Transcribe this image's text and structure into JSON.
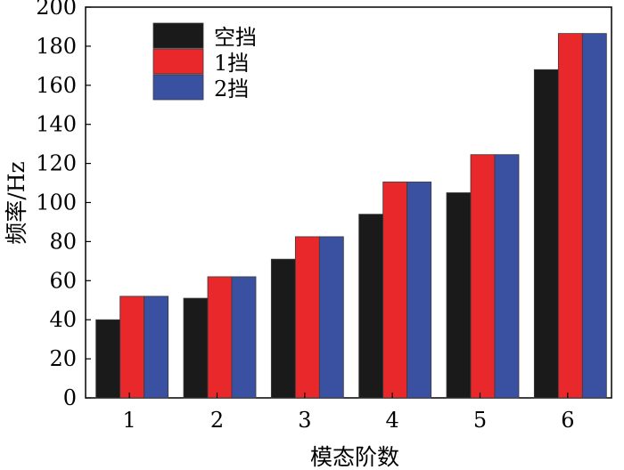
{
  "chart_data": {
    "type": "bar",
    "xlabel": "模态阶数",
    "ylabel": "频率/Hz",
    "categories": [
      "1",
      "2",
      "3",
      "4",
      "5",
      "6"
    ],
    "ylim": [
      0,
      200
    ],
    "yticks": [
      0,
      20,
      40,
      60,
      80,
      100,
      120,
      140,
      160,
      180,
      200
    ],
    "grid": false,
    "legend_position": "top-left",
    "series": [
      {
        "name": "空挡",
        "color": "#1a1a1a",
        "values": [
          40,
          51,
          71,
          94,
          105,
          168
        ]
      },
      {
        "name": "1挡",
        "color": "#e8282a",
        "values": [
          52,
          62,
          82.5,
          110.5,
          124.5,
          186.5
        ]
      },
      {
        "name": "2挡",
        "color": "#3a50a0",
        "values": [
          52,
          62,
          82.5,
          110.5,
          124.5,
          186.5
        ]
      }
    ]
  }
}
